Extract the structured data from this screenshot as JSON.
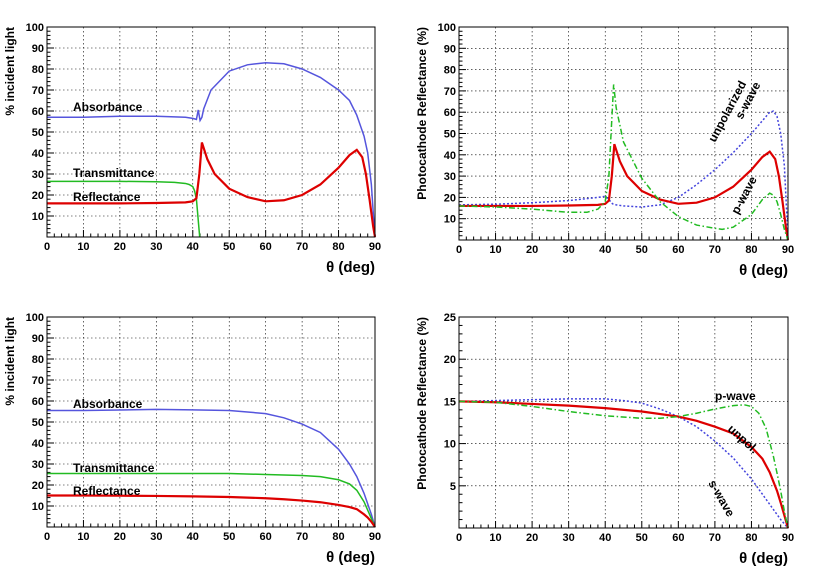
{
  "chart_data": [
    {
      "type": "line",
      "ylabel": "% incident light",
      "xlabel": "θ (deg)",
      "xlim": [
        0,
        90
      ],
      "ylim": [
        0,
        100
      ],
      "xticks": [
        0,
        10,
        20,
        30,
        40,
        50,
        60,
        70,
        80,
        90
      ],
      "yticks": [
        10,
        20,
        30,
        40,
        50,
        60,
        70,
        80,
        90,
        100
      ],
      "grid": true,
      "series": [
        {
          "name": "Absorbance",
          "color": "#5555dd",
          "style": "solid",
          "x": [
            0,
            10,
            20,
            30,
            38,
            40,
            41,
            41.5,
            42,
            42.5,
            43,
            45,
            50,
            55,
            60,
            65,
            70,
            75,
            80,
            83,
            85,
            87,
            88,
            89,
            89.5,
            90
          ],
          "y": [
            57,
            57,
            57.5,
            57.5,
            57,
            56.5,
            56,
            60.5,
            55.5,
            57,
            61,
            70,
            79,
            82,
            83,
            82.5,
            80,
            76,
            70,
            65,
            58,
            48,
            40,
            25,
            12,
            0
          ]
        },
        {
          "name": "Transmittance",
          "color": "#22bb22",
          "style": "solid",
          "x": [
            0,
            10,
            20,
            30,
            35,
            38,
            39,
            40,
            40.5,
            41,
            41.3,
            41.6,
            41.9
          ],
          "y": [
            26.5,
            26.5,
            26.5,
            26.3,
            26,
            25.5,
            25,
            24,
            22,
            18,
            12,
            6,
            0
          ]
        },
        {
          "name": "Reflectance",
          "color": "#dd0000",
          "style": "solid",
          "x": [
            0,
            10,
            20,
            30,
            38,
            40,
            41,
            41.8,
            42.5,
            44,
            46,
            50,
            55,
            60,
            65,
            70,
            75,
            80,
            83,
            85,
            86.5,
            87.5,
            88.5,
            89.5,
            90
          ],
          "y": [
            16,
            16,
            16,
            16.2,
            16.5,
            17,
            18.5,
            30,
            45,
            37,
            30,
            23,
            19,
            17,
            17.5,
            20,
            25,
            33,
            39,
            41.5,
            38,
            30,
            18,
            5,
            0
          ]
        }
      ],
      "annotations": [
        "Absorbance",
        "Transmittance",
        "Reflectance"
      ]
    },
    {
      "type": "line",
      "ylabel": "Photocathode Reflectance (%)",
      "xlabel": "θ (deg)",
      "xlim": [
        0,
        90
      ],
      "ylim": [
        0,
        100
      ],
      "xticks": [
        0,
        10,
        20,
        30,
        40,
        50,
        60,
        70,
        80,
        90
      ],
      "yticks": [
        10,
        20,
        30,
        40,
        50,
        60,
        70,
        80,
        90,
        100
      ],
      "grid": true,
      "series": [
        {
          "name": "s-wave",
          "color": "#4444dd",
          "style": "dotted",
          "x": [
            0,
            10,
            20,
            30,
            38,
            40,
            41,
            42,
            43,
            45,
            50,
            55,
            60,
            65,
            70,
            75,
            80,
            83,
            85,
            86,
            87,
            88,
            89,
            89.5,
            90
          ],
          "y": [
            16.5,
            16.8,
            17.5,
            18.5,
            20,
            20.5,
            19,
            17,
            16.5,
            16,
            15.5,
            16.5,
            20,
            26,
            33,
            41,
            50,
            56,
            60,
            60.5,
            58,
            50,
            35,
            18,
            0
          ]
        },
        {
          "name": "unpolarized",
          "color": "#dd0000",
          "style": "solid",
          "x": [
            0,
            10,
            20,
            30,
            38,
            40,
            41,
            41.8,
            42.5,
            44,
            46,
            50,
            55,
            60,
            65,
            70,
            75,
            80,
            83,
            85,
            86.5,
            87.5,
            88.5,
            89.5,
            90
          ],
          "y": [
            16,
            16,
            16,
            16.2,
            16.5,
            17,
            18.5,
            30,
            45,
            37,
            30,
            23,
            19,
            17,
            17.5,
            20,
            25,
            33,
            39,
            41.5,
            38,
            30,
            18,
            5,
            0
          ]
        },
        {
          "name": "p-wave",
          "color": "#22bb22",
          "style": "dashdot",
          "x": [
            0,
            10,
            20,
            30,
            35,
            38,
            40,
            41,
            41.6,
            42.3,
            43,
            45,
            50,
            55,
            60,
            65,
            70,
            72,
            75,
            80,
            83,
            85,
            86,
            87,
            88,
            89,
            90
          ],
          "y": [
            16,
            15.5,
            14.5,
            13,
            13,
            14.5,
            18,
            30,
            50,
            73,
            62,
            46,
            29,
            18,
            11,
            7,
            5.5,
            5,
            6,
            12,
            19,
            22,
            21,
            18,
            12,
            5,
            0
          ]
        }
      ],
      "annotations": [
        "s-wave",
        "unpolarized",
        "p-wave"
      ]
    },
    {
      "type": "line",
      "ylabel": "% incident light",
      "xlabel": "θ (deg)",
      "xlim": [
        0,
        90
      ],
      "ylim": [
        0,
        100
      ],
      "xticks": [
        0,
        10,
        20,
        30,
        40,
        50,
        60,
        70,
        80,
        90
      ],
      "yticks": [
        10,
        20,
        30,
        40,
        50,
        60,
        70,
        80,
        90,
        100
      ],
      "grid": true,
      "series": [
        {
          "name": "Absorbance",
          "color": "#5555dd",
          "style": "solid",
          "x": [
            0,
            10,
            20,
            30,
            40,
            50,
            60,
            65,
            70,
            75,
            80,
            83,
            85,
            87,
            88,
            89,
            90
          ],
          "y": [
            55.5,
            55.5,
            55.7,
            56,
            55.8,
            55.5,
            54,
            52,
            49,
            45,
            37,
            30,
            24,
            16,
            11,
            6,
            0
          ]
        },
        {
          "name": "Transmittance",
          "color": "#22bb22",
          "style": "solid",
          "x": [
            0,
            10,
            20,
            30,
            40,
            50,
            60,
            70,
            75,
            80,
            83,
            85,
            87,
            88,
            89,
            90
          ],
          "y": [
            25.5,
            25.5,
            25.5,
            25.5,
            25.5,
            25.5,
            25,
            24.5,
            24,
            22.5,
            20.5,
            17.5,
            12,
            8,
            4,
            0
          ]
        },
        {
          "name": "Reflectance",
          "color": "#dd0000",
          "style": "solid",
          "x": [
            0,
            10,
            20,
            30,
            40,
            50,
            60,
            65,
            70,
            75,
            80,
            83,
            85,
            87,
            88,
            89,
            90
          ],
          "y": [
            15,
            15,
            14.9,
            14.8,
            14.6,
            14.3,
            13.7,
            13.2,
            12.6,
            11.8,
            10.5,
            9.5,
            8.5,
            6,
            4.5,
            2.5,
            0
          ]
        }
      ],
      "annotations": [
        "Absorbance",
        "Transmittance",
        "Reflectance"
      ]
    },
    {
      "type": "line",
      "ylabel": "Photocathode Reflectance (%)",
      "xlabel": "θ (deg)",
      "xlim": [
        0,
        90
      ],
      "ylim": [
        0,
        25
      ],
      "xticks": [
        0,
        10,
        20,
        30,
        40,
        50,
        60,
        70,
        80,
        90
      ],
      "yticks": [
        5,
        10,
        15,
        20,
        25
      ],
      "grid": true,
      "series": [
        {
          "name": "s-wave",
          "color": "#4444dd",
          "style": "dotted",
          "x": [
            0,
            10,
            20,
            30,
            35,
            40,
            45,
            50,
            55,
            60,
            65,
            70,
            75,
            80,
            83,
            85,
            87,
            88,
            89,
            90
          ],
          "y": [
            15,
            15.1,
            15.2,
            15.3,
            15.3,
            15.3,
            15.1,
            14.8,
            14.1,
            13.2,
            12,
            10.3,
            8.3,
            5.8,
            4,
            2.8,
            1.6,
            1,
            0.5,
            0
          ]
        },
        {
          "name": "unpol.",
          "color": "#dd0000",
          "style": "solid",
          "x": [
            0,
            10,
            20,
            30,
            40,
            50,
            60,
            65,
            70,
            75,
            80,
            83,
            85,
            87,
            88,
            89,
            90
          ],
          "y": [
            15,
            14.9,
            14.7,
            14.5,
            14.2,
            13.8,
            13.2,
            12.7,
            12,
            11.2,
            9.6,
            8.2,
            6.6,
            4.4,
            3,
            1.5,
            0
          ]
        },
        {
          "name": "p-wave",
          "color": "#22bb22",
          "style": "dashdot",
          "x": [
            0,
            10,
            20,
            30,
            40,
            50,
            55,
            60,
            65,
            70,
            75,
            78,
            80,
            82,
            84,
            86,
            87,
            88,
            89,
            90
          ],
          "y": [
            15,
            14.9,
            14.4,
            13.8,
            13.3,
            13,
            13,
            13.2,
            13.6,
            14.1,
            14.5,
            14.6,
            14.4,
            13.6,
            11.8,
            8.5,
            6.5,
            4.4,
            2,
            0
          ]
        }
      ],
      "annotations": [
        "p-wave",
        "unpol.",
        "s-wave"
      ]
    }
  ]
}
